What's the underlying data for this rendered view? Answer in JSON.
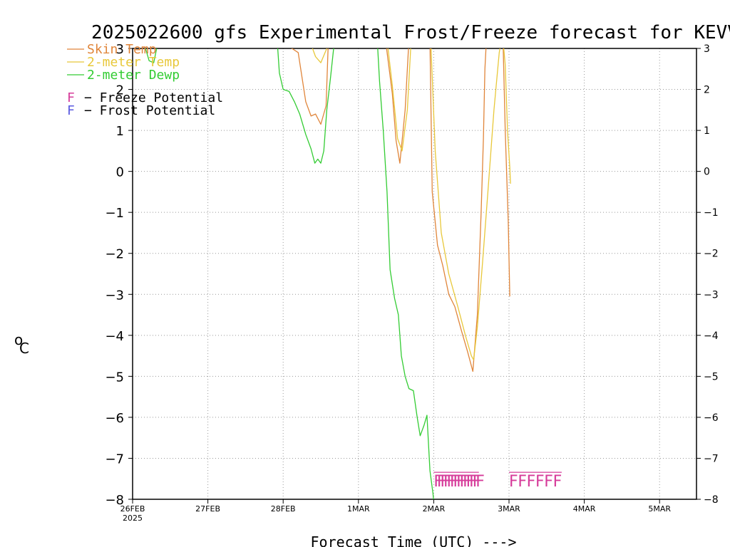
{
  "chart_data": {
    "type": "line",
    "title": "2025022600 gfs Experimental Frost/Freeze forecast for KEVV",
    "xlabel": "Forecast Time (UTC) --->",
    "ylabel_degree": "o",
    "ylabel_unit": "C",
    "ylim": [
      -8,
      3
    ],
    "xlim": [
      0,
      7.5
    ],
    "yticks": [
      "3",
      "2",
      "1",
      "0",
      "−1",
      "−2",
      "−3",
      "−4",
      "−5",
      "−6",
      "−7",
      "−8"
    ],
    "ytick_values": [
      3,
      2,
      1,
      0,
      -1,
      -2,
      -3,
      -4,
      -5,
      -6,
      -7,
      -8
    ],
    "xticks": [
      {
        "label": "26FEB",
        "sub": "2025",
        "x": 0
      },
      {
        "label": "27FEB",
        "sub": "",
        "x": 1
      },
      {
        "label": "28FEB",
        "sub": "",
        "x": 2
      },
      {
        "label": "1MAR",
        "sub": "",
        "x": 3
      },
      {
        "label": "2MAR",
        "sub": "",
        "x": 4
      },
      {
        "label": "3MAR",
        "sub": "",
        "x": 5
      },
      {
        "label": "4MAR",
        "sub": "",
        "x": 6
      },
      {
        "label": "5MAR",
        "sub": "",
        "x": 7
      }
    ],
    "grid": true,
    "legend": [
      {
        "name": "Skin Temp",
        "color": "#e0853a"
      },
      {
        "name": "2-meter Temp",
        "color": "#e8c83a"
      },
      {
        "name": "2-meter Dewp",
        "color": "#33cc33"
      }
    ],
    "potential_legend": [
      {
        "marker": "F",
        "text": "− Freeze Potential",
        "color": "#d63c9a"
      },
      {
        "marker": "F",
        "text": "− Frost Potential",
        "color": "#5a5ae0"
      }
    ],
    "series": [
      {
        "name": "Skin Temp",
        "color": "#e0853a",
        "segments": [
          [
            [
              1.95,
              3.2
            ],
            [
              2.2,
              2.9
            ],
            [
              2.3,
              1.7
            ],
            [
              2.37,
              1.35
            ],
            [
              2.43,
              1.4
            ],
            [
              2.5,
              1.15
            ],
            [
              2.57,
              1.6
            ],
            [
              2.6,
              3.2
            ]
          ],
          [
            [
              3.36,
              3.2
            ],
            [
              3.45,
              1.9
            ],
            [
              3.5,
              0.75
            ],
            [
              3.55,
              0.2
            ],
            [
              3.62,
              1.5
            ],
            [
              3.67,
              3.2
            ]
          ],
          [
            [
              3.95,
              3.2
            ],
            [
              3.98,
              -0.5
            ],
            [
              4.05,
              -1.8
            ],
            [
              4.12,
              -2.3
            ],
            [
              4.2,
              -3.0
            ],
            [
              4.28,
              -3.3
            ],
            [
              4.37,
              -3.9
            ],
            [
              4.45,
              -4.4
            ],
            [
              4.52,
              -4.88
            ],
            [
              4.58,
              -3.5
            ],
            [
              4.63,
              -1.0
            ],
            [
              4.66,
              0.8
            ],
            [
              4.68,
              2.5
            ],
            [
              4.7,
              3.2
            ]
          ],
          [
            [
              4.92,
              3.2
            ],
            [
              4.95,
              1.0
            ],
            [
              4.99,
              -1.2
            ],
            [
              5.01,
              -3.05
            ]
          ]
        ]
      },
      {
        "name": "2-meter Temp",
        "color": "#e8c83a",
        "segments": [
          [
            [
              2.35,
              3.2
            ],
            [
              2.43,
              2.8
            ],
            [
              2.5,
              2.65
            ],
            [
              2.58,
              3.0
            ],
            [
              2.62,
              3.2
            ]
          ],
          [
            [
              3.38,
              3.2
            ],
            [
              3.45,
              2.1
            ],
            [
              3.52,
              0.8
            ],
            [
              3.58,
              0.5
            ],
            [
              3.65,
              1.5
            ],
            [
              3.7,
              3.2
            ]
          ],
          [
            [
              3.96,
              3.2
            ],
            [
              4.02,
              0.5
            ],
            [
              4.1,
              -1.5
            ],
            [
              4.2,
              -2.5
            ],
            [
              4.32,
              -3.3
            ],
            [
              4.42,
              -4.0
            ],
            [
              4.5,
              -4.5
            ],
            [
              4.53,
              -4.6
            ],
            [
              4.58,
              -3.8
            ],
            [
              4.65,
              -2.2
            ],
            [
              4.72,
              -0.5
            ],
            [
              4.8,
              1.5
            ],
            [
              4.87,
              2.9
            ],
            [
              4.9,
              3.2
            ]
          ],
          [
            [
              4.92,
              3.2
            ],
            [
              4.95,
              2.6
            ],
            [
              4.98,
              1.0
            ],
            [
              5.01,
              0.1
            ],
            [
              5.02,
              -0.3
            ]
          ]
        ]
      },
      {
        "name": "2-meter Dewp",
        "color": "#33cc33",
        "segments": [
          [
            [
              0.14,
              3.2
            ],
            [
              0.18,
              2.95
            ],
            [
              0.22,
              2.7
            ],
            [
              0.28,
              2.65
            ],
            [
              0.32,
              3.0
            ],
            [
              0.34,
              3.2
            ]
          ],
          [
            [
              1.92,
              3.2
            ],
            [
              1.95,
              2.4
            ],
            [
              2.0,
              2.0
            ],
            [
              2.08,
              1.95
            ],
            [
              2.15,
              1.7
            ],
            [
              2.22,
              1.4
            ],
            [
              2.3,
              0.9
            ],
            [
              2.37,
              0.55
            ],
            [
              2.42,
              0.2
            ],
            [
              2.46,
              0.3
            ],
            [
              2.5,
              0.2
            ],
            [
              2.54,
              0.5
            ],
            [
              2.58,
              1.5
            ],
            [
              2.63,
              2.3
            ],
            [
              2.67,
              3.0
            ],
            [
              2.69,
              3.2
            ]
          ],
          [
            [
              3.25,
              3.2
            ],
            [
              3.28,
              2.2
            ],
            [
              3.33,
              1.0
            ],
            [
              3.38,
              -0.5
            ],
            [
              3.42,
              -2.4
            ],
            [
              3.48,
              -3.1
            ],
            [
              3.53,
              -3.5
            ],
            [
              3.57,
              -4.5
            ],
            [
              3.62,
              -5.0
            ],
            [
              3.67,
              -5.3
            ],
            [
              3.73,
              -5.35
            ],
            [
              3.78,
              -6.0
            ],
            [
              3.82,
              -6.45
            ],
            [
              3.87,
              -6.2
            ],
            [
              3.91,
              -5.95
            ],
            [
              3.95,
              -7.3
            ],
            [
              3.99,
              -7.85
            ],
            [
              4.0,
              -8.05
            ]
          ]
        ]
      }
    ],
    "freeze_markers": {
      "color": "#d63c9a",
      "dense": {
        "x_start": 4.0,
        "x_end": 4.6,
        "y": -7.55,
        "count": 14,
        "label": "F"
      },
      "sparse": {
        "x_start": 5.0,
        "x_end": 5.7,
        "y": -7.55,
        "count": 6,
        "label": "F"
      }
    }
  }
}
